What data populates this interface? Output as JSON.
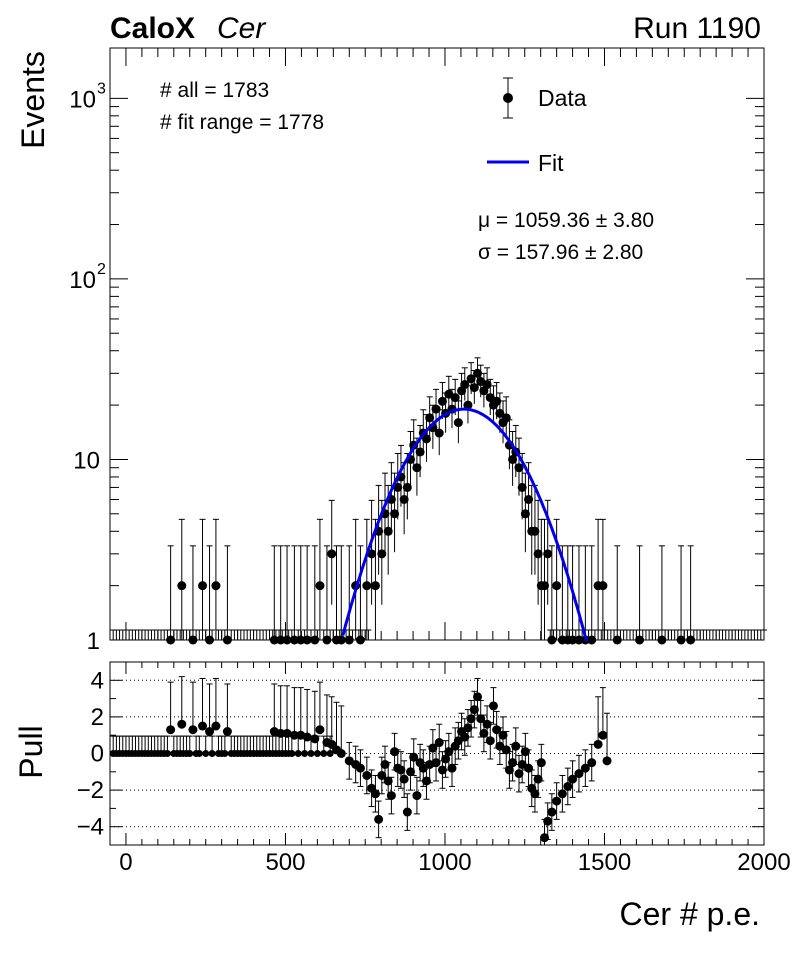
{
  "header": {
    "experiment": "CaloX",
    "channel": "Cer",
    "run": "Run 1190"
  },
  "stats": {
    "all": "# all = 1783",
    "fit_range": "# fit range = 1778",
    "mu": "μ = 1059.36 ± 3.80",
    "sigma": "σ = 157.96 ± 2.80"
  },
  "legend": {
    "data": "Data",
    "fit": "Fit"
  },
  "colors": {
    "data": "#000000",
    "fit": "#0000ee",
    "grid": "#000000"
  },
  "chart_data": [
    {
      "type": "scatter",
      "panel": "top",
      "ylabel": "Events",
      "yscale": "log",
      "xlim": [
        -50,
        2000
      ],
      "ylim": [
        1,
        1900
      ],
      "y_ticks": [
        {
          "v": 1,
          "label": "1"
        },
        {
          "v": 10,
          "label": "10"
        },
        {
          "v": 100,
          "label": "10",
          "sup": "2"
        },
        {
          "v": 1000,
          "label": "10",
          "sup": "3"
        }
      ],
      "series": [
        {
          "name": "Data",
          "points": [
            [
              140,
              1
            ],
            [
              175,
              2
            ],
            [
              210,
              1
            ],
            [
              240,
              2
            ],
            [
              262,
              1
            ],
            [
              282,
              2
            ],
            [
              318,
              1
            ],
            [
              465,
              1
            ],
            [
              485,
              1
            ],
            [
              505,
              1
            ],
            [
              528,
              1
            ],
            [
              548,
              1
            ],
            [
              568,
              1
            ],
            [
              592,
              1
            ],
            [
              608,
              2
            ],
            [
              630,
              1
            ],
            [
              645,
              3
            ],
            [
              660,
              1
            ],
            [
              675,
              1
            ],
            [
              700,
              1
            ],
            [
              720,
              2
            ],
            [
              735,
              1
            ],
            [
              755,
              2
            ],
            [
              770,
              3
            ],
            [
              782,
              2
            ],
            [
              792,
              4
            ],
            [
              802,
              3
            ],
            [
              812,
              5
            ],
            [
              822,
              4
            ],
            [
              832,
              6
            ],
            [
              842,
              5
            ],
            [
              852,
              7
            ],
            [
              862,
              8
            ],
            [
              872,
              6
            ],
            [
              882,
              7
            ],
            [
              892,
              10
            ],
            [
              902,
              12
            ],
            [
              912,
              9
            ],
            [
              922,
              11
            ],
            [
              932,
              14
            ],
            [
              942,
              13
            ],
            [
              952,
              17
            ],
            [
              962,
              15
            ],
            [
              972,
              19
            ],
            [
              982,
              14
            ],
            [
              992,
              21
            ],
            [
              1002,
              18
            ],
            [
              1012,
              23
            ],
            [
              1022,
              19
            ],
            [
              1032,
              22
            ],
            [
              1042,
              16
            ],
            [
              1052,
              24
            ],
            [
              1062,
              26
            ],
            [
              1072,
              20
            ],
            [
              1082,
              28
            ],
            [
              1092,
              25
            ],
            [
              1102,
              30
            ],
            [
              1112,
              27
            ],
            [
              1122,
              24
            ],
            [
              1132,
              26
            ],
            [
              1142,
              22
            ],
            [
              1152,
              20
            ],
            [
              1162,
              21
            ],
            [
              1172,
              18
            ],
            [
              1182,
              16
            ],
            [
              1192,
              17
            ],
            [
              1202,
              12
            ],
            [
              1212,
              10
            ],
            [
              1222,
              11
            ],
            [
              1232,
              9
            ],
            [
              1242,
              7
            ],
            [
              1252,
              5
            ],
            [
              1262,
              6
            ],
            [
              1272,
              4
            ],
            [
              1282,
              4
            ],
            [
              1292,
              3
            ],
            [
              1302,
              2
            ],
            [
              1312,
              2
            ],
            [
              1322,
              3
            ],
            [
              1335,
              1
            ],
            [
              1350,
              2
            ],
            [
              1368,
              1
            ],
            [
              1385,
              1
            ],
            [
              1400,
              1
            ],
            [
              1420,
              1
            ],
            [
              1440,
              1
            ],
            [
              1460,
              1
            ],
            [
              1480,
              2
            ],
            [
              1495,
              2
            ],
            [
              1540,
              1
            ],
            [
              1610,
              1
            ],
            [
              1680,
              1
            ],
            [
              1740,
              1
            ],
            [
              1770,
              1
            ]
          ]
        },
        {
          "name": "Fit",
          "mu": 1059.36,
          "sigma": 157.96,
          "amplitude": 19,
          "range": [
            680,
            1450
          ]
        }
      ]
    },
    {
      "type": "scatter",
      "panel": "bottom",
      "xlabel": "Cer # p.e.",
      "ylabel": "Pull",
      "xlim": [
        -50,
        2000
      ],
      "ylim": [
        -5,
        5
      ],
      "x_ticks": [
        0,
        500,
        1000,
        1500,
        2000
      ],
      "y_ticks": [
        -4,
        -2,
        0,
        2,
        4
      ],
      "gridlines": [
        -4,
        -2,
        0,
        2,
        4
      ],
      "series": [
        {
          "name": "Pull",
          "points": [
            [
              140,
              1.3
            ],
            [
              175,
              1.6
            ],
            [
              210,
              1.3
            ],
            [
              240,
              1.5
            ],
            [
              262,
              1.2
            ],
            [
              282,
              1.5
            ],
            [
              318,
              1.2
            ],
            [
              465,
              1.2
            ],
            [
              485,
              1.1
            ],
            [
              505,
              1.1
            ],
            [
              528,
              1.0
            ],
            [
              548,
              1.0
            ],
            [
              568,
              0.9
            ],
            [
              592,
              0.8
            ],
            [
              608,
              1.3
            ],
            [
              630,
              0.6
            ],
            [
              645,
              0.5
            ],
            [
              660,
              0.2
            ],
            [
              675,
              0.0
            ],
            [
              700,
              -0.4
            ],
            [
              720,
              -0.6
            ],
            [
              735,
              -0.8
            ],
            [
              755,
              -1.2
            ],
            [
              770,
              -1.9
            ],
            [
              782,
              -2.2
            ],
            [
              792,
              -3.6
            ],
            [
              802,
              -1.2
            ],
            [
              812,
              -0.6
            ],
            [
              822,
              -1.5
            ],
            [
              832,
              -2.3
            ],
            [
              842,
              0.1
            ],
            [
              852,
              -0.8
            ],
            [
              862,
              -0.9
            ],
            [
              872,
              -1.4
            ],
            [
              882,
              -3.2
            ],
            [
              892,
              -1.0
            ],
            [
              902,
              -0.2
            ],
            [
              912,
              -2.3
            ],
            [
              922,
              -0.5
            ],
            [
              932,
              -0.8
            ],
            [
              942,
              -1.5
            ],
            [
              952,
              -0.6
            ],
            [
              962,
              0.3
            ],
            [
              972,
              -0.5
            ],
            [
              982,
              0.6
            ],
            [
              992,
              -0.9
            ],
            [
              1002,
              -0.3
            ],
            [
              1012,
              0.1
            ],
            [
              1022,
              -0.8
            ],
            [
              1032,
              0.4
            ],
            [
              1042,
              0.7
            ],
            [
              1052,
              1.2
            ],
            [
              1062,
              0.9
            ],
            [
              1072,
              1.4
            ],
            [
              1082,
              1.9
            ],
            [
              1092,
              2.4
            ],
            [
              1102,
              3.1
            ],
            [
              1112,
              1.9
            ],
            [
              1122,
              1.1
            ],
            [
              1132,
              1.6
            ],
            [
              1142,
              0.7
            ],
            [
              1152,
              2.6
            ],
            [
              1162,
              1.3
            ],
            [
              1172,
              0.4
            ],
            [
              1182,
              1.0
            ],
            [
              1192,
              0.2
            ],
            [
              1202,
              -0.9
            ],
            [
              1212,
              -0.5
            ],
            [
              1222,
              0.4
            ],
            [
              1232,
              -1.1
            ],
            [
              1242,
              -0.6
            ],
            [
              1252,
              0.1
            ],
            [
              1262,
              -0.8
            ],
            [
              1272,
              -1.9
            ],
            [
              1282,
              -2.2
            ],
            [
              1292,
              -1.4
            ],
            [
              1302,
              -0.5
            ],
            [
              1312,
              -4.6
            ],
            [
              1322,
              -3.7
            ],
            [
              1335,
              -3.2
            ],
            [
              1350,
              -2.6
            ],
            [
              1368,
              -2.2
            ],
            [
              1385,
              -1.8
            ],
            [
              1400,
              -1.4
            ],
            [
              1420,
              -1.1
            ],
            [
              1440,
              -0.8
            ],
            [
              1460,
              -0.5
            ],
            [
              1480,
              0.5
            ],
            [
              1495,
              1.0
            ],
            [
              1508,
              -0.4
            ]
          ]
        }
      ]
    }
  ]
}
